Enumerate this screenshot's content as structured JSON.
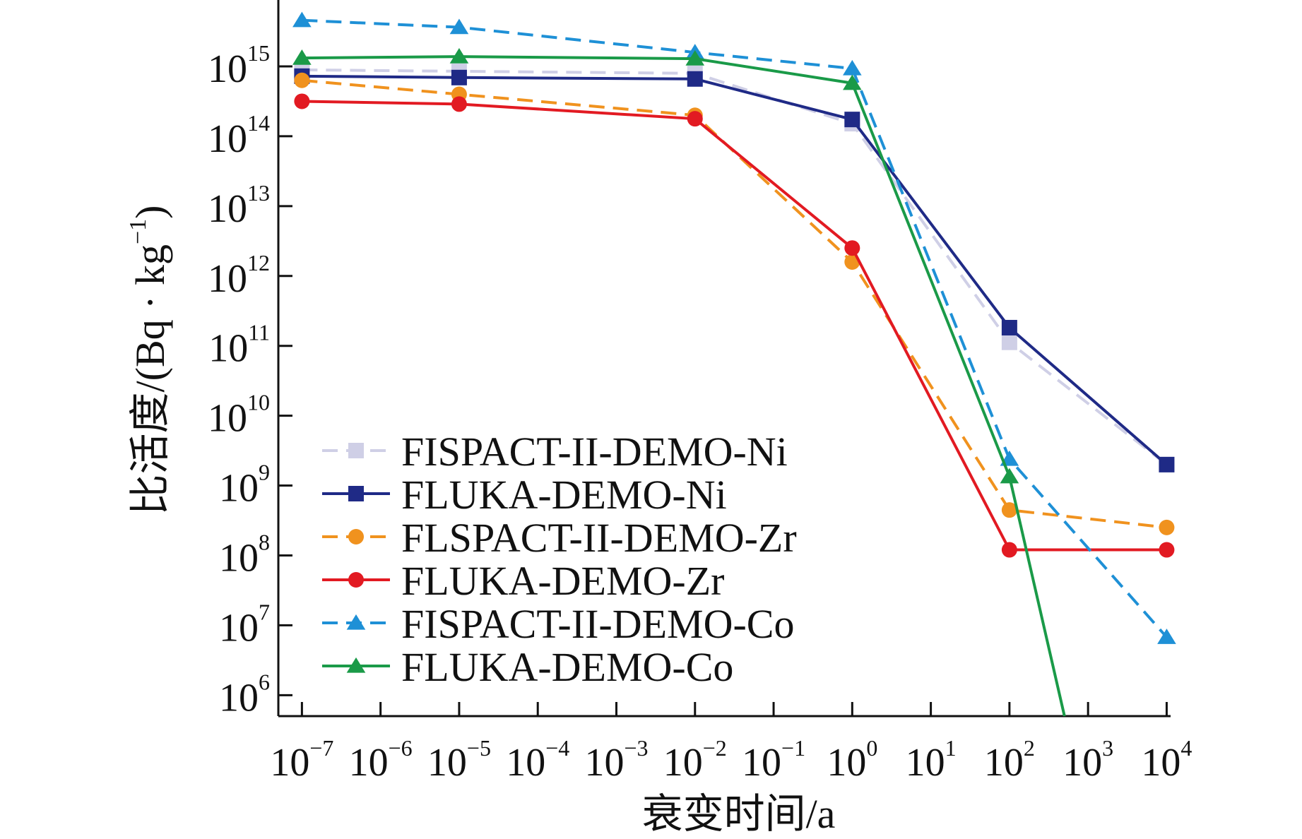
{
  "chart_data": {
    "type": "line",
    "xlabel": "衰变时间/a",
    "ylabel_text": "比活度/(Bq · kg",
    "ylabel_sup": "−1",
    "ylabel_close": ")",
    "xscale": "log",
    "yscale": "log",
    "xlim_exp": [
      -7.3,
      4.05
    ],
    "ylim_exp": [
      5.7,
      15.95
    ],
    "grid": false,
    "legend_position": "lower-left",
    "x_ticks": [
      {
        "base": "10",
        "exp": "−7"
      },
      {
        "base": "10",
        "exp": "−6"
      },
      {
        "base": "10",
        "exp": "−5"
      },
      {
        "base": "10",
        "exp": "−4"
      },
      {
        "base": "10",
        "exp": "−3"
      },
      {
        "base": "10",
        "exp": "−2"
      },
      {
        "base": "10",
        "exp": "−1"
      },
      {
        "base": "10",
        "exp": "0"
      },
      {
        "base": "10",
        "exp": "1"
      },
      {
        "base": "10",
        "exp": "2"
      },
      {
        "base": "10",
        "exp": "3"
      },
      {
        "base": "10",
        "exp": "4"
      }
    ],
    "y_ticks": [
      {
        "base": "10",
        "exp": "6"
      },
      {
        "base": "10",
        "exp": "7"
      },
      {
        "base": "10",
        "exp": "8"
      },
      {
        "base": "10",
        "exp": "9"
      },
      {
        "base": "10",
        "exp": "10"
      },
      {
        "base": "10",
        "exp": "11"
      },
      {
        "base": "10",
        "exp": "12"
      },
      {
        "base": "10",
        "exp": "13"
      },
      {
        "base": "10",
        "exp": "14"
      },
      {
        "base": "10",
        "exp": "15"
      }
    ],
    "series": [
      {
        "name": "FISPACT-II-DEMO-Ni",
        "color": "#cfcfe6",
        "dash": true,
        "marker": "square",
        "x_exp": [
          -7,
          -5,
          -2,
          0,
          2,
          4
        ],
        "y_exp": [
          14.95,
          14.93,
          14.9,
          14.18,
          11.05,
          9.3
        ]
      },
      {
        "name": "FLUKA-DEMO-Ni",
        "color": "#1f2a86",
        "dash": false,
        "marker": "square",
        "x_exp": [
          -7,
          -5,
          -2,
          0,
          2,
          4
        ],
        "y_exp": [
          14.86,
          14.84,
          14.82,
          14.24,
          11.26,
          9.3
        ]
      },
      {
        "name": "FLSPACT-II-DEMO-Zr",
        "color": "#f0921e",
        "dash": true,
        "marker": "circle",
        "x_exp": [
          -7,
          -5,
          -2,
          0,
          2,
          4
        ],
        "y_exp": [
          14.8,
          14.6,
          14.3,
          12.2,
          8.65,
          8.4
        ]
      },
      {
        "name": "FLUKA-DEMO-Zr",
        "color": "#e21a22",
        "dash": false,
        "marker": "circle",
        "x_exp": [
          -7,
          -5,
          -2,
          0,
          2,
          4
        ],
        "y_exp": [
          14.5,
          14.46,
          14.25,
          12.4,
          8.08,
          8.08
        ]
      },
      {
        "name": "FISPACT-II-DEMO-Co",
        "color": "#1e90d6",
        "dash": true,
        "marker": "triangle",
        "x_exp": [
          -7,
          -5,
          -2,
          0,
          2,
          4
        ],
        "y_exp": [
          15.66,
          15.56,
          15.2,
          14.97,
          9.38,
          6.83
        ]
      },
      {
        "name": "FLUKA-DEMO-Co",
        "color": "#1a9a48",
        "dash": false,
        "marker": "triangle",
        "x_exp": [
          -7,
          -5,
          -2,
          0,
          2,
          2.7
        ],
        "y_exp": [
          15.12,
          15.14,
          15.11,
          14.76,
          9.13,
          5.7
        ]
      }
    ]
  }
}
